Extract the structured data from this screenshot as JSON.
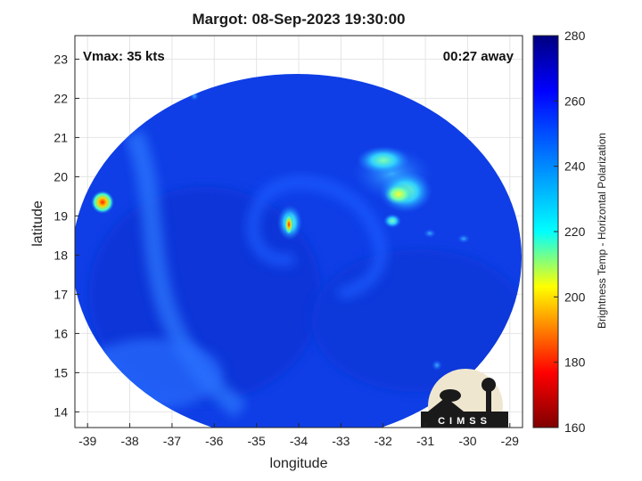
{
  "title": "Margot: 08-Sep-2023 19:30:00",
  "vmax_label": "Vmax: 35 kts",
  "time_away_label": "00:27 away",
  "xlabel": "longitude",
  "ylabel": "latitude",
  "colorbar_label": "Brightness Temp - Horizontal Polarization",
  "logo_text": "CIMSS",
  "chart_data": {
    "type": "heatmap",
    "xlim": [
      -39.3,
      -28.7
    ],
    "ylim": [
      13.6,
      23.6
    ],
    "x_ticks": [
      -39,
      -38,
      -37,
      -36,
      -35,
      -34,
      -33,
      -32,
      -31,
      -30,
      -29
    ],
    "y_ticks": [
      14,
      15,
      16,
      17,
      18,
      19,
      20,
      21,
      22,
      23
    ],
    "colorbar_range": [
      160,
      280
    ],
    "colorbar_ticks": [
      160,
      180,
      200,
      220,
      240,
      260,
      280
    ],
    "colormap": [
      "#7f0000",
      "#ff0000",
      "#ffff00",
      "#00ffff",
      "#0000ff",
      "#000080"
    ],
    "grid": true,
    "storm_center": [
      -34.1,
      18.8
    ]
  }
}
